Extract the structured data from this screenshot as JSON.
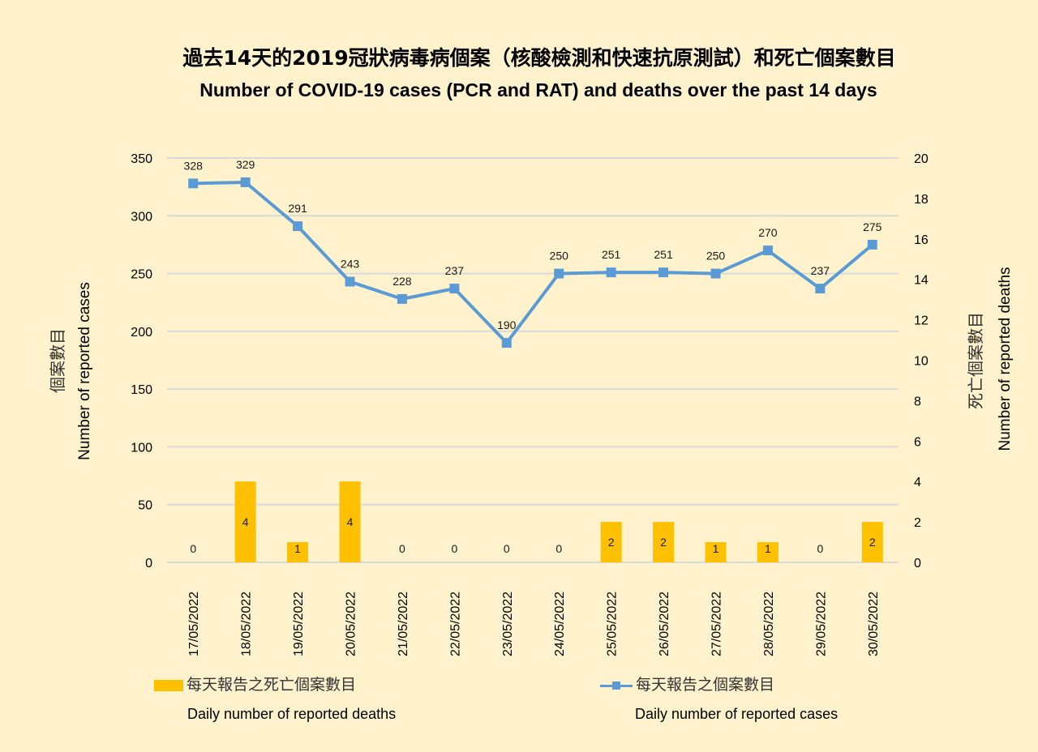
{
  "header": {
    "title_zh": "過去14天的2019冠狀病毒病個案（核酸檢測和快速抗原測試）和死亡個案數目",
    "title_en": "Number of COVID-19 cases (PCR and RAT) and deaths over the past 14 days"
  },
  "axes": {
    "left_title_zh": "個案數目",
    "left_title_en": "Number of reported cases",
    "right_title_zh": "死亡個案數目",
    "right_title_en": "Number of reported deaths",
    "left_ticks": [
      "0",
      "50",
      "100",
      "150",
      "200",
      "250",
      "300",
      "350"
    ],
    "right_ticks": [
      "0",
      "2",
      "4",
      "6",
      "8",
      "10",
      "12",
      "14",
      "16",
      "18",
      "20"
    ]
  },
  "legend": {
    "deaths_zh": "每天報告之死亡個案數目",
    "deaths_en": "Daily number of reported deaths",
    "cases_zh": "每天報告之個案數目",
    "cases_en": "Daily number of reported cases"
  },
  "colors": {
    "background": "#FFF2CC",
    "bars": "#FFC000",
    "line": "#5B9BD5",
    "grid": "#D9D9D9"
  },
  "chart_data": {
    "type": "bar+line",
    "title": "過去14天的2019冠狀病毒病個案（核酸檢測和快速抗原測試）和死亡個案數目 / Number of COVID-19 cases (PCR and RAT) and deaths over the past 14 days",
    "categories": [
      "17/05/2022",
      "18/05/2022",
      "19/05/2022",
      "20/05/2022",
      "21/05/2022",
      "22/05/2022",
      "23/05/2022",
      "24/05/2022",
      "25/05/2022",
      "26/05/2022",
      "27/05/2022",
      "28/05/2022",
      "29/05/2022",
      "30/05/2022"
    ],
    "series": [
      {
        "name": "每天報告之個案數目 / Daily number of reported cases",
        "type": "line",
        "axis": "left",
        "values": [
          328,
          329,
          291,
          243,
          228,
          237,
          190,
          250,
          251,
          251,
          250,
          270,
          237,
          275
        ]
      },
      {
        "name": "每天報告之死亡個案數目 / Daily number of reported deaths",
        "type": "bar",
        "axis": "right",
        "values": [
          0,
          4,
          1,
          4,
          0,
          0,
          0,
          0,
          2,
          2,
          1,
          1,
          0,
          2
        ]
      }
    ],
    "ylabel": "個案數目 Number of reported cases",
    "y2label": "死亡個案數目 Number of reported deaths",
    "ylim": [
      0,
      350
    ],
    "y2lim": [
      0,
      20
    ],
    "grid": true,
    "legend_position": "bottom",
    "data_labels": true
  }
}
